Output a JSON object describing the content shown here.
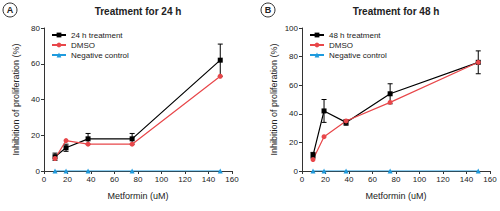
{
  "chart_data": [
    {
      "type": "line",
      "panel_label": "A",
      "title": "Treatment for 24 h",
      "x_label": "Metformin (uM)",
      "y_label": "Inhibition of proliferation (%)",
      "x": [
        9.375,
        18.75,
        37.5,
        75,
        150
      ],
      "series": [
        {
          "name": "24 h treatment",
          "color": "#000000",
          "marker": "square",
          "values": [
            8,
            13,
            18,
            18,
            62
          ],
          "errors": [
            2,
            2,
            3,
            3,
            9
          ]
        },
        {
          "name": "DMSO",
          "color": "#e8474a",
          "marker": "circle",
          "values": [
            7,
            17,
            15,
            15,
            53
          ]
        },
        {
          "name": "Negative control",
          "color": "#1f9bde",
          "marker": "triangle",
          "values": [
            0,
            0,
            0,
            0,
            0
          ]
        }
      ],
      "xlim": [
        0,
        160
      ],
      "xticks": [
        0,
        20,
        40,
        60,
        80,
        100,
        120,
        140,
        160
      ],
      "ylim": [
        0,
        80
      ],
      "yticks": [
        0,
        20,
        40,
        60,
        80
      ],
      "grid": false,
      "legend": "upper left"
    },
    {
      "type": "line",
      "panel_label": "B",
      "title": "Treatment for 48 h",
      "x_label": "Metformin (uM)",
      "y_label": "Inhibition of proliferation (%)",
      "x": [
        9.375,
        18.75,
        37.5,
        75,
        150
      ],
      "series": [
        {
          "name": "48 h treatment",
          "color": "#000000",
          "marker": "square",
          "values": [
            11,
            42,
            34,
            54,
            76
          ],
          "errors": [
            2,
            8,
            2,
            7,
            8
          ]
        },
        {
          "name": "DMSO",
          "color": "#e8474a",
          "marker": "circle",
          "values": [
            8,
            24,
            35,
            48,
            76
          ]
        },
        {
          "name": "Negative control",
          "color": "#1f9bde",
          "marker": "triangle",
          "values": [
            0,
            0,
            0,
            0,
            0
          ]
        }
      ],
      "xlim": [
        0,
        160
      ],
      "xticks": [
        0,
        20,
        40,
        60,
        80,
        100,
        120,
        140,
        160
      ],
      "ylim": [
        0,
        100
      ],
      "yticks": [
        0,
        20,
        40,
        60,
        80,
        100
      ],
      "grid": false,
      "legend": "upper left"
    }
  ]
}
